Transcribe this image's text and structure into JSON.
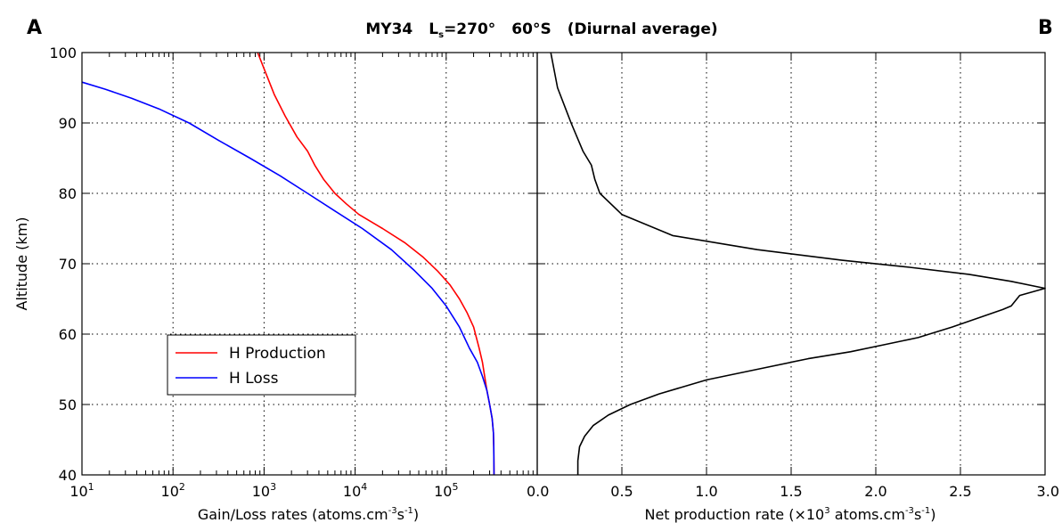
{
  "figure": {
    "title_parts": [
      "MY34",
      "L",
      "s",
      "=270°",
      "60°S",
      "(Diurnal average)"
    ],
    "panel_a_letter": "A",
    "panel_b_letter": "B"
  },
  "chart_data": [
    {
      "panel": "A",
      "type": "line",
      "xscale": "log",
      "xlim": [
        10,
        1000000
      ],
      "ylim": [
        40,
        100
      ],
      "xticks": [
        10,
        100,
        1000,
        10000,
        100000
      ],
      "xtick_base": "10",
      "xtick_exponents": [
        "1",
        "2",
        "3",
        "4",
        "5"
      ],
      "yticks": [
        40,
        50,
        60,
        70,
        80,
        90,
        100
      ],
      "ytick_labels": [
        "40",
        "50",
        "60",
        "70",
        "80",
        "90",
        "100"
      ],
      "xlabel_parts": [
        "Gain/Loss rates (atoms.cm",
        "-3",
        "s",
        "-1",
        ")"
      ],
      "ylabel": "Altitude (km)",
      "grid": true,
      "legend_placement": "lower-left",
      "series": [
        {
          "name": "H Production",
          "color": "#ff0000",
          "x": [
            335000,
            333000,
            330000,
            320000,
            300000,
            280000,
            250000,
            230000,
            200000,
            170000,
            140000,
            110000,
            80000,
            55000,
            35000,
            20000,
            11000,
            8000,
            6000,
            4500,
            3600,
            3000,
            2300,
            1700,
            1300,
            1050,
            850
          ],
          "y": [
            40,
            44,
            46,
            48,
            50,
            52,
            56,
            58,
            61,
            63,
            65,
            67,
            69,
            71,
            73,
            75,
            77,
            78.5,
            80,
            82,
            84,
            86,
            88,
            91,
            94,
            97,
            100
          ]
        },
        {
          "name": "H Loss",
          "color": "#0000ff",
          "x": [
            335000,
            333000,
            330000,
            320000,
            300000,
            280000,
            250000,
            220000,
            180000,
            140000,
            100000,
            70000,
            45000,
            25000,
            12000,
            6000,
            3000,
            1500,
            700,
            320,
            150,
            70,
            35,
            18,
            10
          ],
          "y": [
            40,
            44,
            46,
            48,
            50,
            52,
            54,
            56,
            58,
            61,
            64,
            66.5,
            69,
            72,
            75,
            77.5,
            80,
            82.5,
            85,
            87.5,
            90,
            92,
            93.5,
            94.8,
            95.8
          ]
        }
      ]
    },
    {
      "panel": "B",
      "type": "line",
      "xlim": [
        0,
        3
      ],
      "ylim": [
        40,
        100
      ],
      "xticks": [
        0,
        0.5,
        1,
        1.5,
        2,
        2.5,
        3
      ],
      "xtick_labels": [
        "0.0",
        "0.5",
        "1.0",
        "1.5",
        "2.0",
        "2.5",
        "3.0"
      ],
      "xlabel_parts": [
        "Net production rate (×10",
        "3",
        " atoms.cm",
        "-3",
        "s",
        "-1",
        ")"
      ],
      "grid": true,
      "series": [
        {
          "color": "#000000",
          "x": [
            0.24,
            0.24,
            0.25,
            0.28,
            0.33,
            0.42,
            0.55,
            0.72,
            1.0,
            1.3,
            1.6,
            1.85,
            2.05,
            2.25,
            2.45,
            2.75,
            2.8,
            2.85,
            3.0,
            2.8,
            2.55,
            2.2,
            1.8,
            1.3,
            0.8,
            0.5,
            0.37,
            0.34,
            0.32,
            0.27,
            0.2,
            0.12,
            0.08
          ],
          "y": [
            40,
            42,
            44,
            45.5,
            47,
            48.5,
            50,
            51.5,
            53.5,
            55,
            56.5,
            57.5,
            58.5,
            59.5,
            61,
            63.5,
            64,
            65.5,
            66.5,
            67.5,
            68.5,
            69.5,
            70.5,
            72,
            74,
            77,
            80,
            82,
            84,
            86,
            90,
            95,
            100
          ]
        }
      ]
    }
  ]
}
